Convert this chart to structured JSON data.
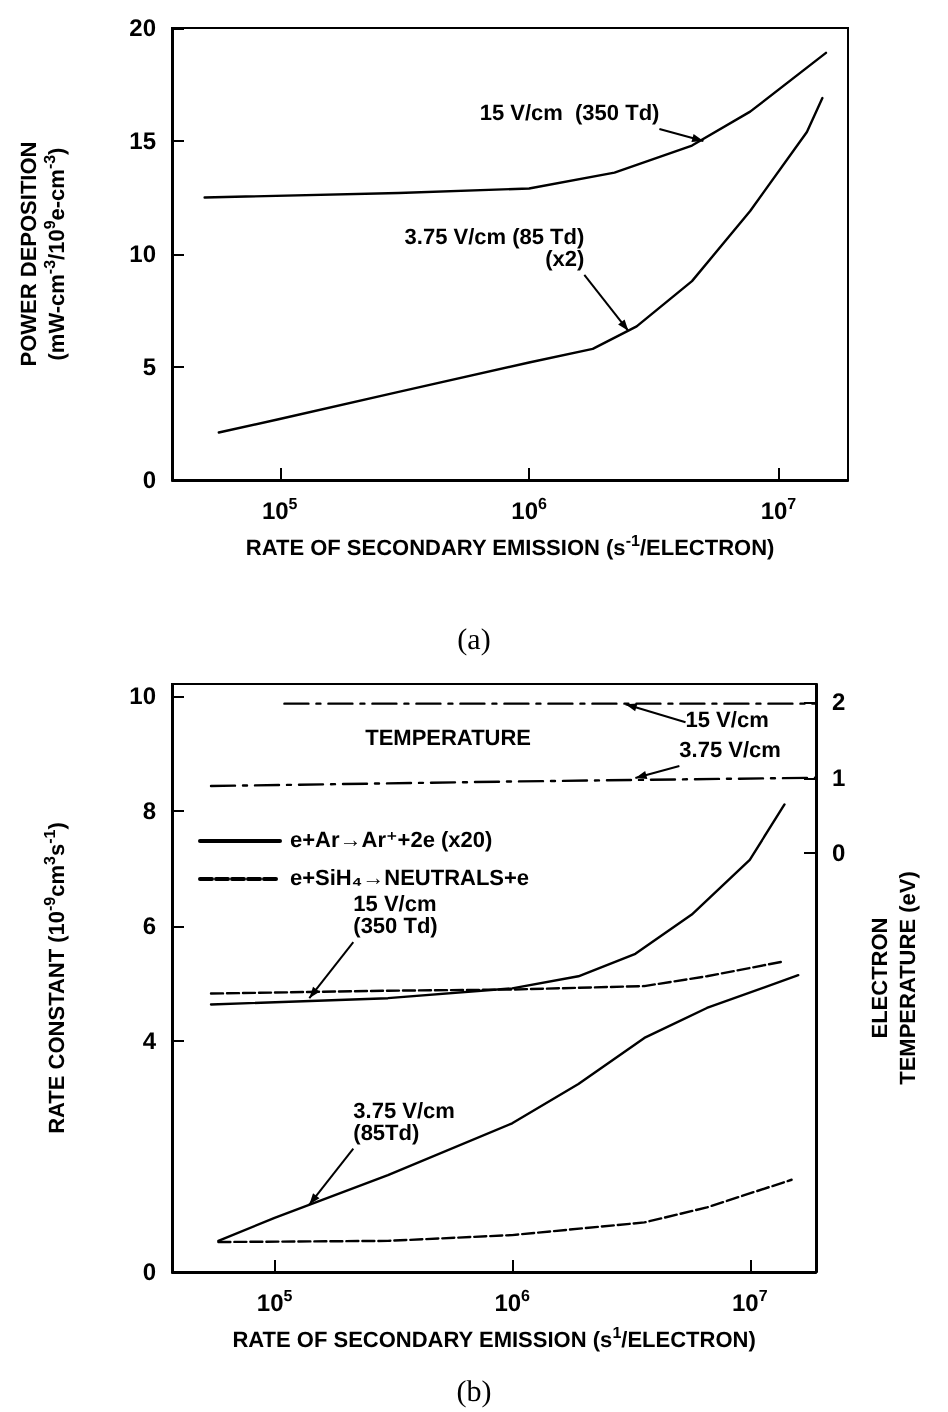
{
  "chart_data": [
    {
      "type": "line",
      "xlabel": "RATE OF SECONDARY EMISSION (s$^{-1}$/ELECTRON)",
      "ylabel": "POWER DEPOSITION\n(mW-cm$^{-3}$/10$^{9}$e-cm$^{-3}$)",
      "log": "x",
      "xlim": [
        37000,
        19000000
      ],
      "xticks": [
        {
          "value": 100000,
          "label": "10$^{5}$"
        },
        {
          "value": 1000000,
          "label": "10$^{6}$"
        },
        {
          "value": 10000000,
          "label": "10$^{7}$"
        }
      ],
      "ylim": [
        0,
        20
      ],
      "yticks": [
        0,
        5,
        10,
        15,
        20
      ],
      "line_style": "solid",
      "marker": "none",
      "series": [
        {
          "color": "#000000",
          "x": [
            50000,
            300000,
            1000000,
            2200000,
            4500000,
            7700000,
            15500000
          ],
          "values": [
            12.5,
            12.7,
            12.9,
            13.6,
            14.8,
            16.3,
            18.9
          ]
        },
        {
          "color": "#000000",
          "x": [
            57000,
            100000,
            300000,
            1000000,
            1800000,
            2700000,
            4500000,
            7700000,
            13000000,
            15000000
          ],
          "values": [
            2.1,
            2.7,
            3.9,
            5.2,
            5.8,
            6.8,
            8.8,
            11.9,
            15.4,
            16.9
          ]
        }
      ],
      "annotations": [
        "(a)",
        {
          "text": "15 V/cm  (350 Td)",
          "x": 5000000,
          "y": 15
        },
        {
          "text": "3.75 V/cm (85 Td)\n(x2)",
          "x": 2500000,
          "y": 6.6
        }
      ]
    },
    {
      "type": "line",
      "xlabel": "RATE OF SECONDARY EMISSION (s$^{1}$/ELECTRON)",
      "ylabel": "RATE CONSTANT (10$^{-9}$cm$^{3}$s$^{-1}$)",
      "y2label": "ELECTRON\nTEMPERATURE (eV)",
      "log": "x",
      "xlim": [
        37000,
        19000000
      ],
      "xticks": [
        {
          "value": 100000,
          "label": "10$^{5}$"
        },
        {
          "value": 1000000,
          "label": "10$^{6}$"
        },
        {
          "value": 10000000,
          "label": "10$^{7}$"
        }
      ],
      "ylim": [
        0,
        10.2
      ],
      "yticks": [
        0,
        4,
        6,
        8,
        10
      ],
      "y2lim": [
        -5.54,
        2.24
      ],
      "y2ticks": [
        0,
        1,
        2
      ],
      "marker": "none",
      "legend": "top left",
      "series": [
        {
          "name": "e+Ar→Ar⁺+2e (x20)",
          "color": "#000000",
          "line_style": "solid",
          "x": [
            54000,
            300000,
            1000000,
            1900000,
            3300000,
            5700000,
            10000000,
            14000000
          ],
          "values": [
            4.64,
            4.75,
            4.92,
            5.13,
            5.52,
            6.2,
            7.15,
            8.11
          ]
        },
        {
          "name": "e+SiH₄→NEUTRALS+e",
          "color": "#000000",
          "line_style": "dashed",
          "x": [
            54000,
            300000,
            1000000,
            3600000,
            6600000,
            14000000
          ],
          "values": [
            4.83,
            4.88,
            4.9,
            4.96,
            5.13,
            5.39
          ]
        },
        {
          "color": "#000000",
          "line_style": "solid",
          "x": [
            58000,
            100000,
            300000,
            1000000,
            1900000,
            3600000,
            6600000,
            16000000
          ],
          "values": [
            0.54,
            0.94,
            1.68,
            2.58,
            3.26,
            4.06,
            4.58,
            5.15
          ]
        },
        {
          "color": "#000000",
          "line_style": "dashed",
          "x": [
            58000,
            300000,
            1000000,
            3600000,
            6600000,
            15000000
          ],
          "values": [
            0.52,
            0.54,
            0.64,
            0.86,
            1.12,
            1.6
          ]
        },
        {
          "color": "#000000",
          "line_style": "dashdot",
          "axis": "y2",
          "x": [
            110000,
            1000000,
            19000000
          ],
          "values": [
            1.98,
            1.98,
            1.98
          ]
        },
        {
          "color": "#000000",
          "line_style": "dashdot",
          "axis": "y2",
          "x": [
            54000,
            1000000,
            19000000
          ],
          "values": [
            0.89,
            0.95,
            1.0
          ]
        }
      ],
      "annotations": [
        "(b)",
        "TEMPERATURE",
        {
          "text": "15 V/cm",
          "x": 3000000,
          "y": 9.85
        },
        {
          "text": "3.75 V/cm",
          "x": 3300000,
          "y": 8.57
        },
        {
          "text": "15 V/cm\n(350 Td)",
          "x": 140000,
          "y": 4.75
        },
        {
          "text": "3.75 V/cm\n(85Td)",
          "x": 140000,
          "y": 1.17
        }
      ]
    }
  ]
}
